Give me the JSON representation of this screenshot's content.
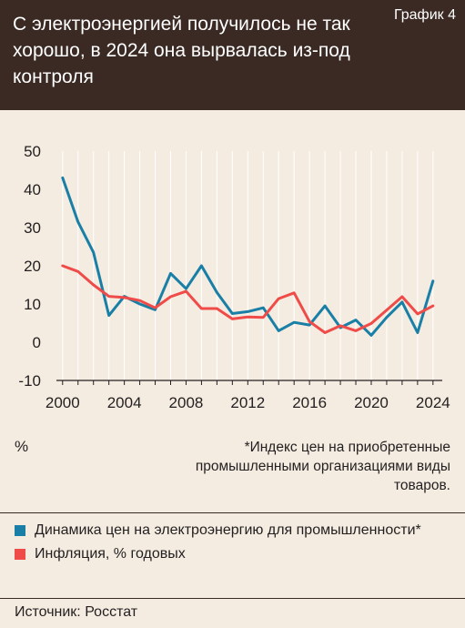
{
  "header": {
    "title": "С электроэнергией получилось не так хорошо, в 2024 она вырвалась из-под контроля",
    "label": "График 4"
  },
  "axis_unit": "%",
  "footnote": "*Индекс цен на приобретенные промышленными организациями виды товаров.",
  "source": "Источник: Росстат",
  "colors": {
    "header_bg": "#3b2a24",
    "background": "#f4ece1",
    "electricity": "#1a7fa6",
    "inflation": "#ef4b48",
    "grid": "#ffffff"
  },
  "chart_data": {
    "type": "line",
    "x": [
      2000,
      2001,
      2002,
      2003,
      2004,
      2005,
      2006,
      2007,
      2008,
      2009,
      2010,
      2011,
      2012,
      2013,
      2014,
      2015,
      2016,
      2017,
      2018,
      2019,
      2020,
      2021,
      2022,
      2023,
      2024
    ],
    "x_ticks": [
      2000,
      2004,
      2008,
      2012,
      2016,
      2020,
      2024
    ],
    "y_ticks": [
      50,
      40,
      30,
      20,
      10,
      0,
      -10
    ],
    "ylim": [
      -10,
      50
    ],
    "xlim": [
      1999.6,
      2024.6
    ],
    "grid": "vertical",
    "series": [
      {
        "name": "Динамика цен на электроэнергию для промышленности*",
        "color": "#1a7fa6",
        "values": [
          43,
          31.5,
          23.5,
          7,
          12,
          10,
          8.5,
          18,
          14,
          20,
          13,
          7.5,
          8,
          9,
          3,
          5.2,
          4.5,
          9.5,
          3.8,
          5.8,
          1.8,
          6.5,
          10.5,
          2.5,
          16
        ]
      },
      {
        "name": "Инфляция, % годовых",
        "color": "#ef4b48",
        "values": [
          20,
          18.5,
          15,
          12,
          11.7,
          10.9,
          9,
          11.9,
          13.3,
          8.8,
          8.8,
          6.1,
          6.6,
          6.5,
          11.4,
          12.9,
          5.4,
          2.5,
          4.3,
          3,
          4.9,
          8.4,
          11.9,
          7.4,
          9.5
        ]
      }
    ]
  }
}
